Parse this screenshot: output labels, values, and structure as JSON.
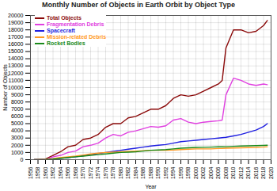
{
  "chart_data": {
    "type": "line",
    "title": "Monthly Number of Objects in Earth Orbit by Object Type",
    "x_label": "Year",
    "y_label": "Number of Objects",
    "x": [
      1957,
      1960,
      1962,
      1964,
      1966,
      1968,
      1970,
      1972,
      1974,
      1976,
      1978,
      1980,
      1982,
      1984,
      1986,
      1988,
      1990,
      1992,
      1994,
      1996,
      1998,
      2000,
      2002,
      2004,
      2006,
      2007,
      2008,
      2010,
      2012,
      2014,
      2016,
      2018,
      2019
    ],
    "series": [
      {
        "name": "Total Objects",
        "color": "#8b0a0a",
        "values": [
          0,
          100,
          600,
          1100,
          1800,
          2000,
          2800,
          3000,
          3500,
          4500,
          5000,
          5000,
          5800,
          6000,
          6500,
          7000,
          7000,
          7500,
          8500,
          9000,
          8800,
          9000,
          9500,
          10000,
          10500,
          11000,
          15500,
          18000,
          18000,
          17600,
          17800,
          18600,
          19300
        ]
      },
      {
        "name": "Fragmentation Debris",
        "color": "#e040e0",
        "values": [
          0,
          0,
          400,
          600,
          1000,
          1200,
          1800,
          2000,
          2300,
          3000,
          3500,
          3300,
          3800,
          4000,
          4300,
          4600,
          4500,
          4700,
          5500,
          5700,
          5200,
          5000,
          5200,
          5300,
          5400,
          5500,
          9000,
          11300,
          11000,
          10500,
          10300,
          10500,
          10400
        ]
      },
      {
        "name": "Spacecraft",
        "color": "#1f1fe0",
        "values": [
          0,
          50,
          120,
          200,
          300,
          400,
          550,
          700,
          850,
          1000,
          1150,
          1300,
          1450,
          1600,
          1750,
          1900,
          2000,
          2100,
          2300,
          2500,
          2600,
          2700,
          2800,
          2900,
          3000,
          3050,
          3100,
          3300,
          3500,
          3800,
          4100,
          4600,
          5000
        ]
      },
      {
        "name": "Mission-related Debris",
        "color": "#ff9922",
        "values": [
          0,
          50,
          150,
          300,
          400,
          500,
          650,
          800,
          900,
          1000,
          1050,
          1100,
          1150,
          1200,
          1250,
          1300,
          1300,
          1300,
          1350,
          1400,
          1450,
          1500,
          1500,
          1500,
          1550,
          1550,
          1600,
          1620,
          1650,
          1680,
          1700,
          1750,
          1800
        ]
      },
      {
        "name": "Rocket Bodies",
        "color": "#1a8a1a",
        "values": [
          0,
          30,
          100,
          200,
          300,
          400,
          500,
          600,
          700,
          800,
          900,
          1000,
          1050,
          1100,
          1200,
          1300,
          1350,
          1400,
          1500,
          1600,
          1650,
          1700,
          1720,
          1750,
          1780,
          1790,
          1800,
          1850,
          1900,
          1920,
          1950,
          1980,
          2000
        ]
      }
    ],
    "xlim": [
      1956,
      2020
    ],
    "xticks": [
      1956,
      1958,
      1960,
      1962,
      1964,
      1966,
      1968,
      1970,
      1972,
      1974,
      1976,
      1978,
      1980,
      1982,
      1984,
      1986,
      1988,
      1990,
      1992,
      1994,
      1996,
      1998,
      2000,
      2002,
      2004,
      2006,
      2008,
      2010,
      2012,
      2014,
      2016,
      2018,
      2020
    ],
    "ylim": [
      0,
      20000
    ],
    "yticks": [
      0,
      1000,
      2000,
      3000,
      4000,
      5000,
      6000,
      7000,
      8000,
      9000,
      10000,
      11000,
      12000,
      13000,
      14000,
      15000,
      16000,
      17000,
      18000,
      19000,
      20000
    ],
    "grid": true,
    "legend": "upper left"
  }
}
